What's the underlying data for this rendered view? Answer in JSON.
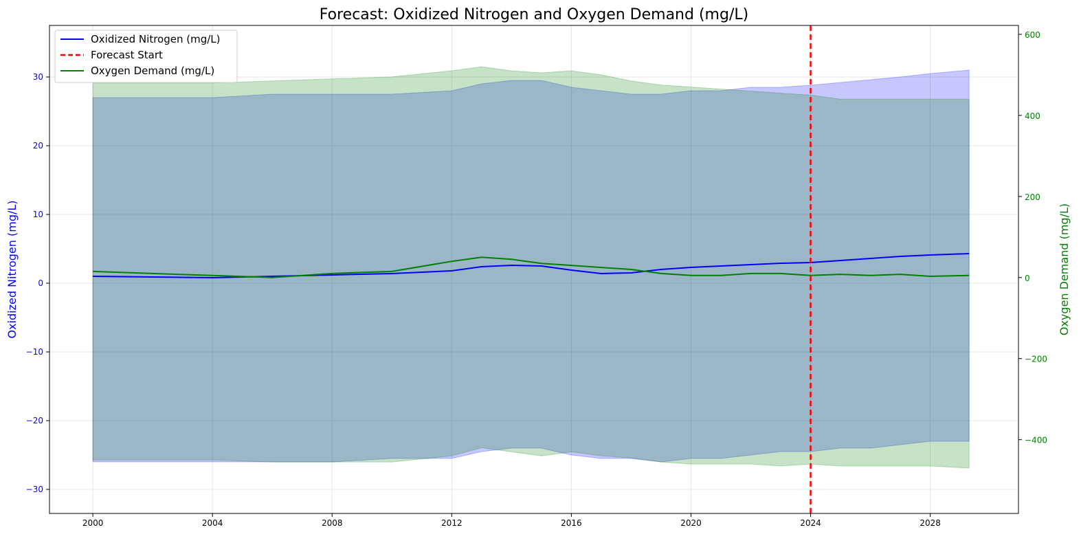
{
  "chart_data": {
    "type": "line",
    "title": "Forecast: Oxidized Nitrogen and Oxygen Demand (mg/L)",
    "x_axis": {
      "xlabel": "",
      "range": [
        1998.55,
        2030.95
      ],
      "ticks": [
        "2000",
        "2004",
        "2008",
        "2012",
        "2016",
        "2020",
        "2024",
        "2028"
      ]
    },
    "y_left": {
      "label": "Oxidized Nitrogen (mg/L)",
      "range": [
        -33.5,
        37.5
      ],
      "ticks": [
        -30,
        -20,
        -10,
        0,
        10,
        20,
        30
      ],
      "tick_labels": [
        "−30",
        "−20",
        "−10",
        "0",
        "10",
        "20",
        "30"
      ]
    },
    "y_right": {
      "label": "Oxygen Demand (mg/L)",
      "range": [
        -582,
        622
      ],
      "ticks": [
        -400,
        -200,
        0,
        200,
        400,
        600
      ],
      "tick_labels": [
        "−400",
        "−200",
        "0",
        "200",
        "400",
        "600"
      ]
    },
    "grid": true,
    "legend_position": "top-left",
    "forecast_start": 2024.0,
    "series": [
      {
        "name": "Oxidized Nitrogen (mg/L)",
        "axis": "left",
        "color": "#0000ff",
        "x": [
          2000,
          2002,
          2004,
          2006,
          2008,
          2010,
          2012,
          2013,
          2014,
          2015,
          2016,
          2017,
          2018,
          2019,
          2020,
          2021,
          2022,
          2023,
          2024,
          2025,
          2026,
          2027,
          2028,
          2029.3
        ],
        "values": [
          1.0,
          0.9,
          0.8,
          1.0,
          1.2,
          1.4,
          1.8,
          2.4,
          2.6,
          2.5,
          1.9,
          1.4,
          1.5,
          2.0,
          2.3,
          2.5,
          2.7,
          2.9,
          3.0,
          3.3,
          3.6,
          3.9,
          4.1,
          4.3
        ],
        "upper_band": [
          27,
          27,
          27,
          27.5,
          27.5,
          27.5,
          28,
          29,
          29.5,
          29.5,
          28.5,
          28,
          27.5,
          27.5,
          28,
          28,
          28.5,
          28.5,
          28.8,
          29.2,
          29.6,
          30,
          30.5,
          31
        ],
        "lower_band": [
          -26,
          -26,
          -26,
          -26,
          -26,
          -25.5,
          -25.5,
          -24.5,
          -24,
          -24,
          -25,
          -25.5,
          -25.5,
          -26,
          -25.5,
          -25.5,
          -25,
          -24.5,
          -24.5,
          -24,
          -24,
          -23.5,
          -23,
          -23
        ]
      },
      {
        "name": "Oxygen Demand (mg/L)",
        "axis": "right",
        "color": "#008000",
        "x": [
          2000,
          2002,
          2004,
          2006,
          2008,
          2010,
          2012,
          2013,
          2014,
          2015,
          2016,
          2017,
          2018,
          2019,
          2020,
          2021,
          2022,
          2023,
          2024,
          2025,
          2026,
          2027,
          2028,
          2029.3
        ],
        "values": [
          15,
          10,
          5,
          0,
          10,
          15,
          40,
          50,
          45,
          35,
          30,
          25,
          20,
          10,
          5,
          5,
          10,
          10,
          5,
          8,
          5,
          8,
          3,
          5
        ],
        "upper_band": [
          480,
          480,
          480,
          485,
          490,
          495,
          510,
          520,
          510,
          505,
          510,
          500,
          485,
          475,
          470,
          465,
          460,
          455,
          450,
          440,
          440,
          440,
          440,
          440
        ],
        "lower_band": [
          -450,
          -450,
          -450,
          -455,
          -455,
          -455,
          -440,
          -420,
          -430,
          -440,
          -430,
          -440,
          -445,
          -455,
          -460,
          -460,
          -460,
          -465,
          -460,
          -465,
          -465,
          -465,
          -465,
          -470
        ]
      }
    ],
    "forecast_line": {
      "name": "Forecast Start",
      "color": "#ff0000",
      "style": "dashed"
    }
  }
}
